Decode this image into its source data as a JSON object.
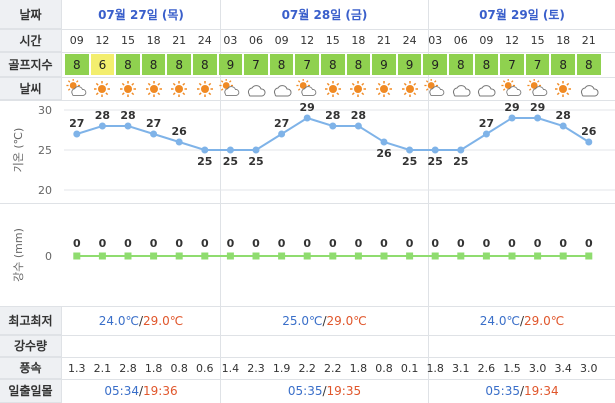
{
  "labels": {
    "date": "날짜",
    "time": "시간",
    "golf_index": "골프지수",
    "weather": "날씨",
    "temp_axis": "기온 (℃)",
    "rain_axis": "강수 (mm)",
    "minmax": "최고최저",
    "rain_amount": "강수량",
    "wind": "풍속",
    "sunrise_sunset": "일출일몰"
  },
  "days": [
    {
      "date": "07월 27일 (목)",
      "min": "24.0℃",
      "max": "29.0℃",
      "sunrise": "05:34",
      "sunset": "19:36"
    },
    {
      "date": "07월 28일 (금)",
      "min": "25.0℃",
      "max": "29.0℃",
      "sunrise": "05:35",
      "sunset": "19:35"
    },
    {
      "date": "07월 29일 (토)",
      "min": "24.0℃",
      "max": "29.0℃",
      "sunrise": "05:35",
      "sunset": "19:34"
    }
  ],
  "separator": "/",
  "hours": [
    "09",
    "12",
    "15",
    "18",
    "21",
    "24",
    "03",
    "06",
    "09",
    "12",
    "15",
    "18",
    "21",
    "24",
    "03",
    "06",
    "09",
    "12",
    "15",
    "18",
    "21"
  ],
  "golf_index": [
    "8",
    "6",
    "8",
    "8",
    "8",
    "8",
    "9",
    "7",
    "8",
    "7",
    "8",
    "8",
    "9",
    "9",
    "9",
    "8",
    "8",
    "7",
    "7",
    "8",
    "8"
  ],
  "weather_icons": [
    "cloud-sun",
    "sun",
    "sun",
    "sun",
    "sun",
    "sun",
    "cloud-sun",
    "cloud",
    "cloud",
    "cloud-sun",
    "sun",
    "sun",
    "sun",
    "sun",
    "cloud-sun",
    "cloud",
    "cloud",
    "cloud-sun",
    "cloud-sun",
    "sun",
    "cloud"
  ],
  "wind": [
    "1.3",
    "2.1",
    "2.8",
    "1.8",
    "0.8",
    "0.6",
    "1.4",
    "2.3",
    "1.9",
    "2.2",
    "2.2",
    "1.8",
    "0.8",
    "0.1",
    "1.8",
    "3.1",
    "2.6",
    "1.5",
    "3.0",
    "3.4",
    "3.0"
  ],
  "colors": {
    "golf_green": "#8fd14f",
    "golf_yellow": "#f3ee6e",
    "temp_line": "#7fb3e8",
    "rain_line": "#8fdc6f",
    "date_blue": "#3a5fcb"
  },
  "chart_data": [
    {
      "type": "line",
      "ylabel": "기온 (℃)",
      "yticks": [
        20,
        25,
        30
      ],
      "ylim": [
        20,
        30
      ],
      "x": [
        "09",
        "12",
        "15",
        "18",
        "21",
        "24",
        "03",
        "06",
        "09",
        "12",
        "15",
        "18",
        "21",
        "24",
        "03",
        "06",
        "09",
        "12",
        "15",
        "18",
        "21"
      ],
      "values": [
        27,
        28,
        28,
        27,
        26,
        25,
        25,
        25,
        27,
        29,
        28,
        28,
        26,
        25,
        25,
        25,
        27,
        29,
        29,
        28,
        26
      ]
    },
    {
      "type": "line",
      "ylabel": "강수 (mm)",
      "yticks": [
        0
      ],
      "x": [
        "09",
        "12",
        "15",
        "18",
        "21",
        "24",
        "03",
        "06",
        "09",
        "12",
        "15",
        "18",
        "21",
        "24",
        "03",
        "06",
        "09",
        "12",
        "15",
        "18",
        "21"
      ],
      "values": [
        0,
        0,
        0,
        0,
        0,
        0,
        0,
        0,
        0,
        0,
        0,
        0,
        0,
        0,
        0,
        0,
        0,
        0,
        0,
        0,
        0
      ]
    }
  ]
}
